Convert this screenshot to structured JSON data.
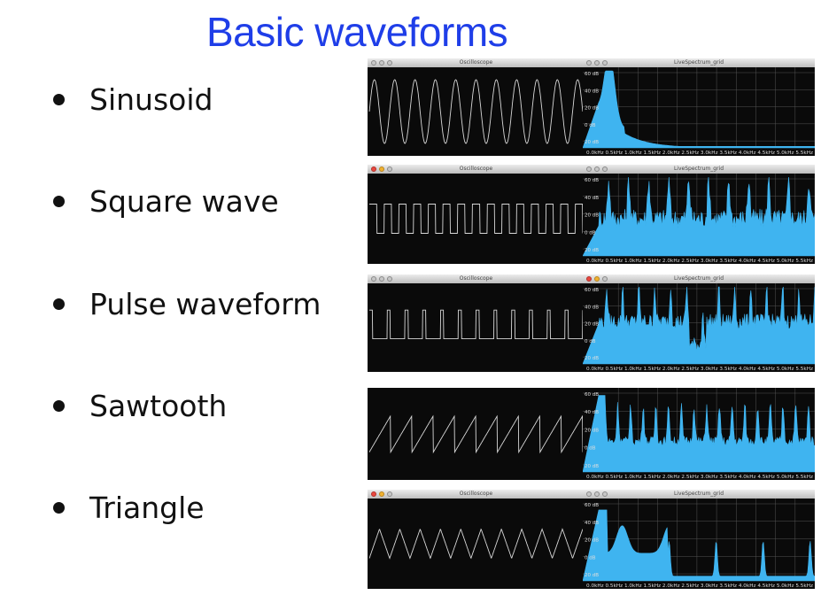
{
  "slide": {
    "title": "Basic waveforms",
    "bullets": [
      "Sinusoid",
      "Square wave",
      "Pulse waveform",
      "Sawtooth",
      "Triangle"
    ]
  },
  "windows": {
    "oscilloscope_title": "Oscilloscope",
    "spectrum_title": "LiveSpectrum_grid"
  },
  "spectrum": {
    "db_labels": [
      "60 dB",
      "40 dB",
      "20 dB",
      "0 dB",
      "20 dB"
    ],
    "freq_axis": "0.0kHz 0.5kHz 1.0kHz 1.5kHz 2.0kHz 2.5kHz 3.0kHz 3.5kHz 4.0kHz 4.5kHz 5.0kHz 5.5kHz"
  },
  "colors": {
    "title": "#1f3ee8",
    "spectrum_fill": "#3fb4f0",
    "scope_trace": "#d8d8d8",
    "screen": "#0a0a0a"
  }
}
